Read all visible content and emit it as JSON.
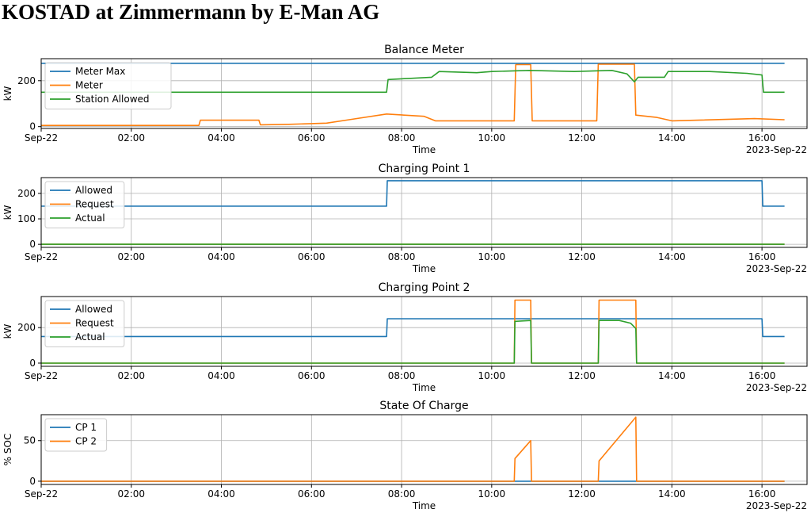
{
  "page": {
    "title": "KOSTAD at Zimmermann by E-Man AG"
  },
  "colors": {
    "blue": "#1f77b4",
    "orange": "#ff7f0e",
    "green": "#2ca02c"
  },
  "chart_data": [
    {
      "type": "line",
      "title": "Balance Meter",
      "xlabel": "Time",
      "ylabel": "kW",
      "date_label": "2023-Sep-22",
      "xlim": [
        "00:00",
        "17:00"
      ],
      "ylim": [
        -8,
        296
      ],
      "x_ticks": [
        "00:00",
        "02:00",
        "04:00",
        "06:00",
        "08:00",
        "10:00",
        "12:00",
        "14:00",
        "16:00"
      ],
      "x_tick_labels": [
        "Sep-22",
        "02:00",
        "04:00",
        "06:00",
        "08:00",
        "10:00",
        "12:00",
        "14:00",
        "16:00"
      ],
      "y_ticks": [
        0,
        200
      ],
      "grid": true,
      "legend_position": "upper-left",
      "series": [
        {
          "name": "Meter Max",
          "color": "#1f77b4",
          "points": [
            [
              "00:00",
              276
            ],
            [
              "16:30",
              276
            ]
          ]
        },
        {
          "name": "Meter",
          "color": "#ff7f0e",
          "points": [
            [
              "00:00",
              5
            ],
            [
              "03:30",
              5
            ],
            [
              "03:32",
              28
            ],
            [
              "04:50",
              28
            ],
            [
              "04:52",
              8
            ],
            [
              "05:30",
              10
            ],
            [
              "06:20",
              15
            ],
            [
              "06:50",
              30
            ],
            [
              "07:40",
              55
            ],
            [
              "08:30",
              45
            ],
            [
              "08:45",
              25
            ],
            [
              "10:30",
              25
            ],
            [
              "10:32",
              270
            ],
            [
              "10:52",
              270
            ],
            [
              "10:54",
              25
            ],
            [
              "12:20",
              25
            ],
            [
              "12:22",
              272
            ],
            [
              "13:10",
              272
            ],
            [
              "13:12",
              50
            ],
            [
              "13:40",
              40
            ],
            [
              "14:00",
              25
            ],
            [
              "15:50",
              35
            ],
            [
              "16:30",
              30
            ]
          ]
        },
        {
          "name": "Station Allowed",
          "color": "#2ca02c",
          "points": [
            [
              "00:00",
              150
            ],
            [
              "07:40",
              150
            ],
            [
              "07:42",
              205
            ],
            [
              "08:10",
              210
            ],
            [
              "08:40",
              215
            ],
            [
              "08:50",
              240
            ],
            [
              "09:40",
              235
            ],
            [
              "10:00",
              240
            ],
            [
              "10:50",
              245
            ],
            [
              "11:50",
              240
            ],
            [
              "12:40",
              245
            ],
            [
              "13:00",
              230
            ],
            [
              "13:10",
              195
            ],
            [
              "13:15",
              215
            ],
            [
              "13:50",
              215
            ],
            [
              "13:55",
              240
            ],
            [
              "14:50",
              240
            ],
            [
              "15:40",
              232
            ],
            [
              "16:00",
              225
            ],
            [
              "16:02",
              150
            ],
            [
              "16:30",
              150
            ]
          ]
        }
      ]
    },
    {
      "type": "line",
      "title": "Charging Point 1",
      "xlabel": "Time",
      "ylabel": "kW",
      "date_label": "2023-Sep-22",
      "xlim": [
        "00:00",
        "17:00"
      ],
      "ylim": [
        -12,
        262
      ],
      "x_ticks": [
        "00:00",
        "02:00",
        "04:00",
        "06:00",
        "08:00",
        "10:00",
        "12:00",
        "14:00",
        "16:00"
      ],
      "x_tick_labels": [
        "Sep-22",
        "02:00",
        "04:00",
        "06:00",
        "08:00",
        "10:00",
        "12:00",
        "14:00",
        "16:00"
      ],
      "y_ticks": [
        0,
        100,
        200
      ],
      "grid": true,
      "legend_position": "upper-left",
      "series": [
        {
          "name": "Allowed",
          "color": "#1f77b4",
          "points": [
            [
              "00:00",
              150
            ],
            [
              "07:40",
              150
            ],
            [
              "07:41",
              250
            ],
            [
              "16:00",
              250
            ],
            [
              "16:01",
              150
            ],
            [
              "16:30",
              150
            ]
          ]
        },
        {
          "name": "Request",
          "color": "#ff7f0e",
          "points": [
            [
              "00:00",
              0
            ],
            [
              "16:30",
              0
            ]
          ]
        },
        {
          "name": "Actual",
          "color": "#2ca02c",
          "points": [
            [
              "00:00",
              0
            ],
            [
              "16:30",
              0
            ]
          ]
        }
      ]
    },
    {
      "type": "line",
      "title": "Charging Point 2",
      "xlabel": "Time",
      "ylabel": "kW",
      "date_label": "2023-Sep-22",
      "xlim": [
        "00:00",
        "17:00"
      ],
      "ylim": [
        -18,
        375
      ],
      "x_ticks": [
        "00:00",
        "02:00",
        "04:00",
        "06:00",
        "08:00",
        "10:00",
        "12:00",
        "14:00",
        "16:00"
      ],
      "x_tick_labels": [
        "Sep-22",
        "02:00",
        "04:00",
        "06:00",
        "08:00",
        "10:00",
        "12:00",
        "14:00",
        "16:00"
      ],
      "y_ticks": [
        0,
        200
      ],
      "grid": true,
      "legend_position": "upper-left",
      "series": [
        {
          "name": "Allowed",
          "color": "#1f77b4",
          "points": [
            [
              "00:00",
              150
            ],
            [
              "07:40",
              150
            ],
            [
              "07:41",
              250
            ],
            [
              "16:00",
              250
            ],
            [
              "16:01",
              150
            ],
            [
              "16:30",
              150
            ]
          ]
        },
        {
          "name": "Request",
          "color": "#ff7f0e",
          "points": [
            [
              "00:00",
              0
            ],
            [
              "10:30",
              0
            ],
            [
              "10:31",
              355
            ],
            [
              "10:52",
              355
            ],
            [
              "10:53",
              0
            ],
            [
              "12:22",
              0
            ],
            [
              "12:23",
              355
            ],
            [
              "13:12",
              355
            ],
            [
              "13:13",
              0
            ],
            [
              "16:30",
              0
            ]
          ]
        },
        {
          "name": "Actual",
          "color": "#2ca02c",
          "points": [
            [
              "00:00",
              0
            ],
            [
              "10:30",
              0
            ],
            [
              "10:31",
              235
            ],
            [
              "10:52",
              240
            ],
            [
              "10:53",
              0
            ],
            [
              "12:22",
              0
            ],
            [
              "12:23",
              240
            ],
            [
              "12:50",
              240
            ],
            [
              "13:05",
              225
            ],
            [
              "13:12",
              195
            ],
            [
              "13:13",
              0
            ],
            [
              "16:30",
              0
            ]
          ]
        }
      ]
    },
    {
      "type": "line",
      "title": "State Of Charge",
      "xlabel": "Time",
      "ylabel": "% SOC",
      "date_label": "2023-Sep-22",
      "xlim": [
        "00:00",
        "17:00"
      ],
      "ylim": [
        -4,
        82
      ],
      "x_ticks": [
        "00:00",
        "02:00",
        "04:00",
        "06:00",
        "08:00",
        "10:00",
        "12:00",
        "14:00",
        "16:00"
      ],
      "x_tick_labels": [
        "Sep-22",
        "02:00",
        "04:00",
        "06:00",
        "08:00",
        "10:00",
        "12:00",
        "14:00",
        "16:00"
      ],
      "y_ticks": [
        0,
        50
      ],
      "grid": true,
      "legend_position": "upper-left",
      "series": [
        {
          "name": "CP 1",
          "color": "#1f77b4",
          "points": [
            [
              "00:00",
              0
            ],
            [
              "16:30",
              0
            ]
          ]
        },
        {
          "name": "CP 2",
          "color": "#ff7f0e",
          "points": [
            [
              "00:00",
              0
            ],
            [
              "10:30",
              0
            ],
            [
              "10:31",
              28
            ],
            [
              "10:52",
              50
            ],
            [
              "10:53",
              0
            ],
            [
              "12:22",
              0
            ],
            [
              "12:23",
              25
            ],
            [
              "13:12",
              79
            ],
            [
              "13:13",
              0
            ],
            [
              "16:30",
              0
            ]
          ]
        }
      ]
    }
  ]
}
